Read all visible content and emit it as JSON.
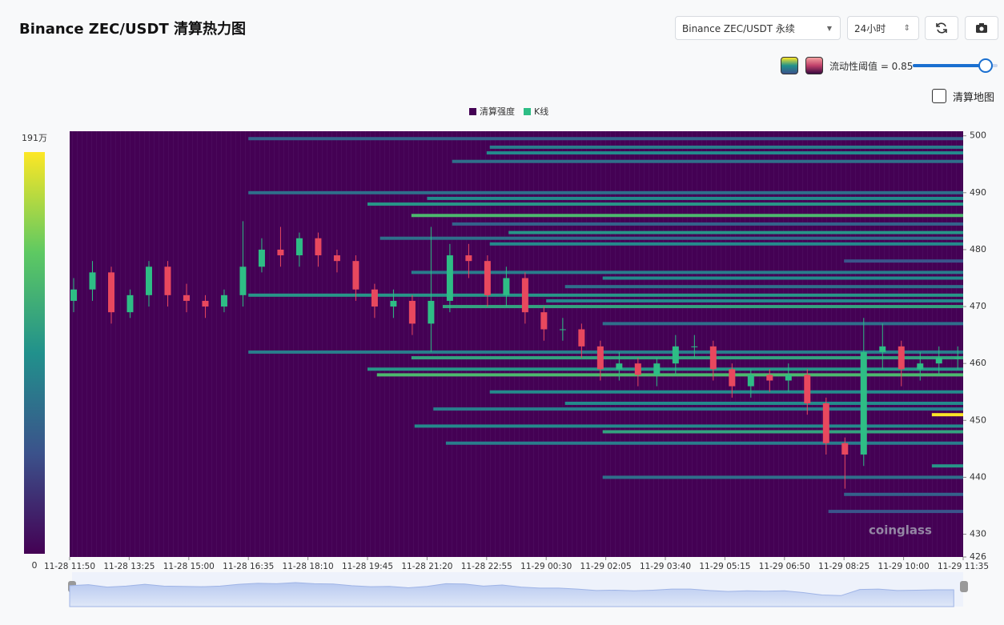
{
  "header": {
    "title": "Binance ZEC/USDT 清算热力图",
    "symbol_select": "Binance ZEC/USDT 永续",
    "range_select": "24小时",
    "threshold": "流动性阈值 = 0.85",
    "map_toggle": "清算地图"
  },
  "chart_data": {
    "type": "heatmap-candlestick",
    "legend": [
      "清算强度",
      "K线"
    ],
    "watermark": "coinglass",
    "xlim": [
      "11-28 11:50",
      "11-29 11:35"
    ],
    "xticks": [
      "11-28 11:50",
      "11-28 13:25",
      "11-28 15:00",
      "11-28 16:35",
      "11-28 18:10",
      "11-28 19:45",
      "11-28 21:20",
      "11-28 22:55",
      "11-29 00:30",
      "11-29 02:05",
      "11-29 03:40",
      "11-29 05:15",
      "11-29 06:50",
      "11-29 08:25",
      "11-29 10:00",
      "11-29 11:35"
    ],
    "ylim": [
      426,
      500.8
    ],
    "yticks": [
      500,
      490,
      480,
      470,
      460,
      450,
      440,
      430,
      426
    ],
    "colorlim": [
      0,
      1910000
    ],
    "colorbar_ticks": [
      0,
      {
        "value": 1910000,
        "label": "191万"
      }
    ],
    "up_color": "#2ebd85",
    "down_color": "#e8485e",
    "candles": {
      "x": [
        "11-28 11:50",
        "11-28 12:20",
        "11-28 12:50",
        "11-28 13:20",
        "11-28 13:50",
        "11-28 14:20",
        "11-28 14:50",
        "11-28 15:20",
        "11-28 15:50",
        "11-28 16:20",
        "11-28 16:50",
        "11-28 17:20",
        "11-28 17:50",
        "11-28 18:20",
        "11-28 18:50",
        "11-28 19:20",
        "11-28 19:50",
        "11-28 20:20",
        "11-28 20:50",
        "11-28 21:20",
        "11-28 21:50",
        "11-28 22:20",
        "11-28 22:50",
        "11-28 23:20",
        "11-28 23:50",
        "11-29 00:20",
        "11-29 00:50",
        "11-29 01:20",
        "11-29 01:50",
        "11-29 02:20",
        "11-29 02:50",
        "11-29 03:20",
        "11-29 03:50",
        "11-29 04:20",
        "11-29 04:50",
        "11-29 05:20",
        "11-29 05:50",
        "11-29 06:20",
        "11-29 06:50",
        "11-29 07:20",
        "11-29 07:50",
        "11-29 08:20",
        "11-29 08:50",
        "11-29 09:20",
        "11-29 09:50",
        "11-29 10:20",
        "11-29 10:50",
        "11-29 11:20"
      ],
      "open": [
        471,
        473,
        476,
        469,
        472,
        477,
        472,
        471,
        470,
        472,
        477,
        480,
        479,
        482,
        479,
        478,
        473,
        470,
        471,
        467,
        471,
        479,
        478,
        472,
        475,
        469,
        466,
        466,
        463,
        459,
        460,
        458,
        460,
        463,
        463,
        459,
        456,
        458,
        457,
        458,
        453,
        446,
        444,
        462,
        463,
        459,
        460,
        461
      ],
      "high": [
        475,
        478,
        477,
        473,
        478,
        478,
        474,
        472,
        473,
        485,
        482,
        484,
        483,
        483,
        480,
        479,
        474,
        473,
        472,
        484,
        481,
        481,
        479,
        477,
        476,
        470,
        468,
        467,
        464,
        462,
        461,
        461,
        465,
        465,
        464,
        460,
        459,
        459,
        460,
        459,
        454,
        447,
        468,
        467,
        464,
        462,
        463,
        463
      ],
      "low": [
        469,
        471,
        467,
        468,
        470,
        470,
        469,
        468,
        469,
        470,
        476,
        477,
        477,
        477,
        476,
        471,
        468,
        468,
        465,
        462,
        469,
        475,
        470,
        470,
        467,
        464,
        464,
        461,
        457,
        457,
        456,
        456,
        458,
        461,
        457,
        454,
        454,
        455,
        455,
        451,
        444,
        438,
        442,
        459,
        456,
        457,
        458,
        459
      ],
      "close": [
        473,
        476,
        469,
        472,
        477,
        472,
        471,
        470,
        472,
        477,
        480,
        479,
        482,
        479,
        478,
        473,
        470,
        471,
        467,
        471,
        479,
        478,
        472,
        475,
        469,
        466,
        466,
        463,
        459,
        460,
        458,
        460,
        463,
        463,
        459,
        456,
        458,
        457,
        458,
        453,
        446,
        444,
        462,
        463,
        459,
        460,
        461,
        461
      ]
    },
    "bands": {
      "price": [
        499.5,
        498,
        497,
        495.5,
        490,
        489,
        488,
        486,
        484.5,
        483,
        482,
        481,
        478,
        476,
        475,
        473.5,
        472,
        471,
        470,
        467,
        462,
        461,
        459,
        458,
        455,
        453,
        452,
        451,
        449,
        448,
        446,
        442,
        440,
        437,
        434
      ],
      "start": [
        "11-28 16:35",
        "11-28 23:00",
        "11-28 22:55",
        "11-28 22:00",
        "11-28 16:35",
        "11-28 21:20",
        "11-28 19:45",
        "11-28 20:55",
        "11-28 22:00",
        "11-28 23:30",
        "11-28 20:05",
        "11-28 23:00",
        "11-29 08:25",
        "11-28 20:55",
        "11-29 02:00",
        "11-29 01:00",
        "11-28 16:35",
        "11-29 00:30",
        "11-28 21:45",
        "11-29 02:00",
        "11-28 16:35",
        "11-28 20:55",
        "11-28 19:45",
        "11-28 20:00",
        "11-28 23:00",
        "11-29 01:00",
        "11-28 21:30",
        "11-29 10:45",
        "11-28 21:00",
        "11-29 02:00",
        "11-28 21:50",
        "11-29 10:45",
        "11-29 02:00",
        "11-29 08:25",
        "11-29 08:00"
      ],
      "values": [
        600000,
        800000,
        900000,
        700000,
        700000,
        900000,
        1000000,
        1300000,
        600000,
        1000000,
        700000,
        900000,
        500000,
        800000,
        900000,
        700000,
        1000000,
        900000,
        1100000,
        700000,
        800000,
        1100000,
        1000000,
        1300000,
        900000,
        900000,
        800000,
        1900000,
        900000,
        1100000,
        800000,
        1000000,
        700000,
        600000,
        500000
      ]
    }
  }
}
